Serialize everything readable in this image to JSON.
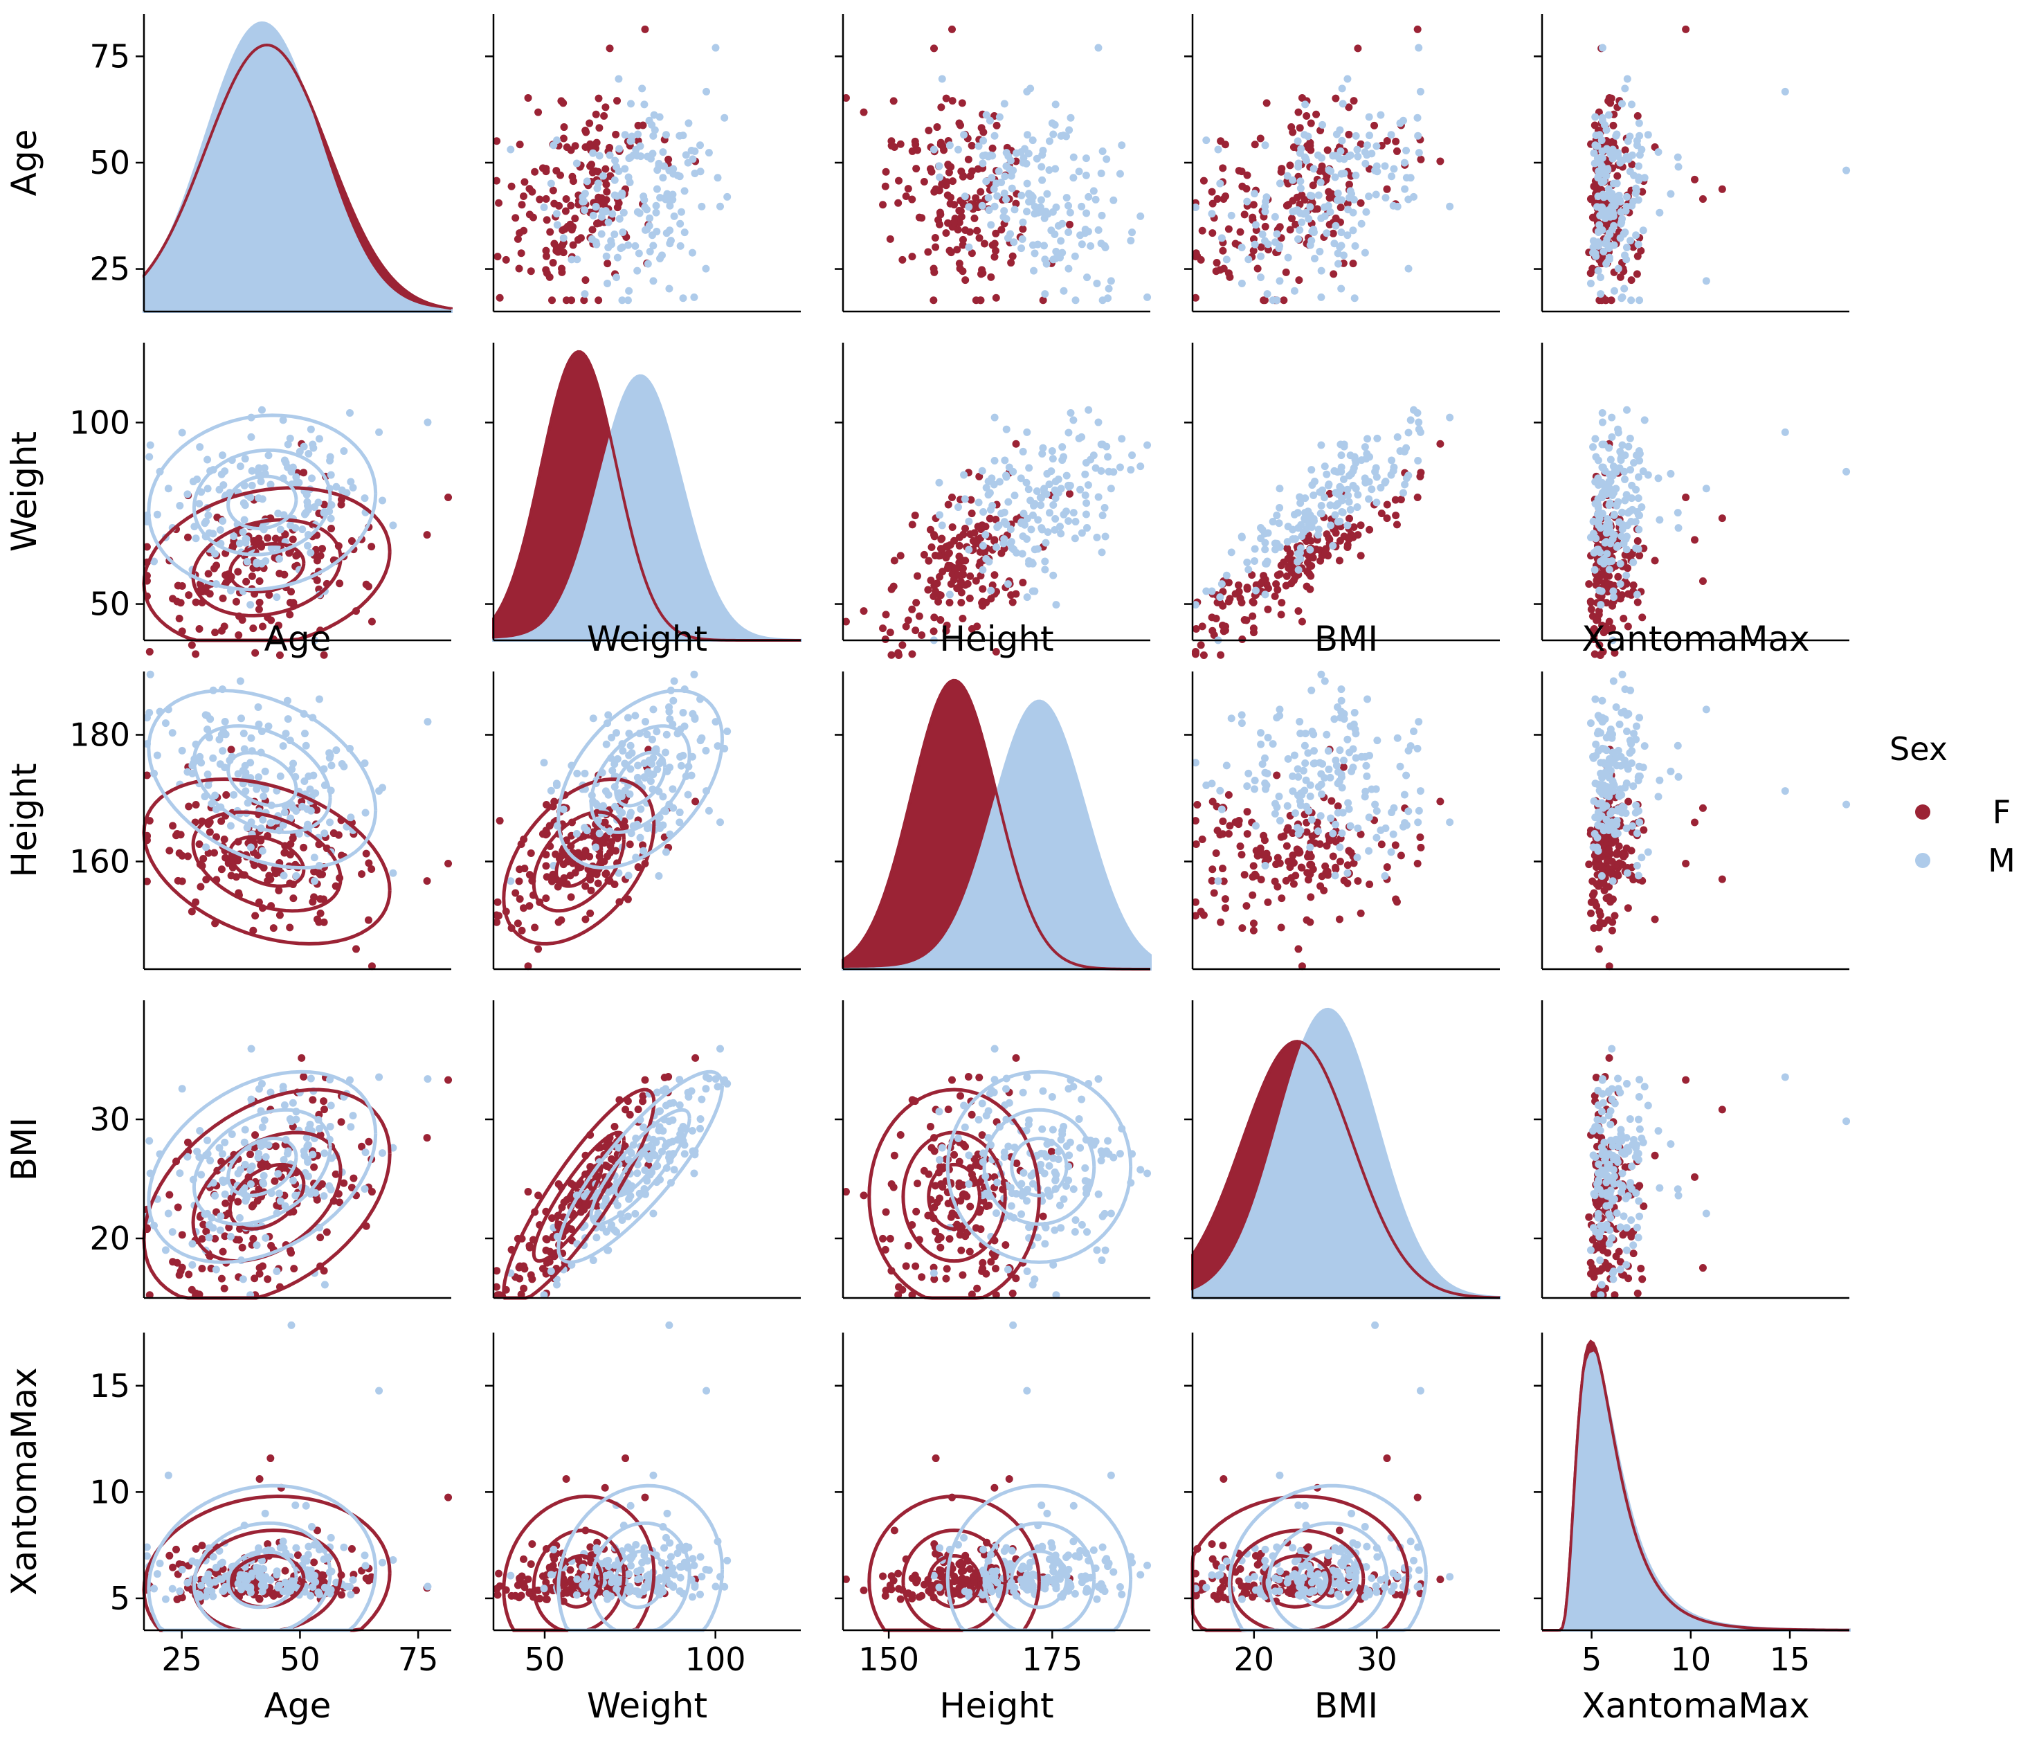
{
  "figure": {
    "variables": [
      "Age",
      "Weight",
      "Height",
      "BMI",
      "XantomaMax"
    ],
    "hue_variable": "Sex",
    "legend": {
      "title": "Sex",
      "placement": "right",
      "entries": [
        {
          "label": "F",
          "color": "#9b2335"
        },
        {
          "label": "M",
          "color": "#aecbea"
        }
      ]
    },
    "colors": {
      "F": "#9b2335",
      "M": "#aecbea"
    },
    "stray_labels": {
      "row": 1,
      "labels": [
        "Age",
        "Weight",
        "Height",
        "BMI",
        "XantomaMax"
      ]
    }
  },
  "chart_data": {
    "type": "scatter",
    "layout": "pairplot",
    "upper_triangle": "scatter",
    "diagonal": "kde",
    "lower_triangle": "scatter+kde-contours",
    "grid": false,
    "axes": [
      {
        "name": "Age",
        "xlim": [
          17,
          82
        ],
        "ylim": [
          15,
          85
        ],
        "ticks": [
          25,
          50,
          75
        ]
      },
      {
        "name": "Weight",
        "xlim": [
          35,
          125
        ],
        "ylim": [
          40,
          122
        ],
        "ticks": [
          50,
          100
        ]
      },
      {
        "name": "Height",
        "xlim": [
          143,
          190
        ],
        "ylim": [
          143,
          190
        ],
        "ticks": [
          150,
          175
        ],
        "y_ticks": [
          160,
          180
        ]
      },
      {
        "name": "BMI",
        "xlim": [
          15,
          40
        ],
        "ylim": [
          15,
          40
        ],
        "ticks": [
          20,
          30
        ]
      },
      {
        "name": "XantomaMax",
        "xlim": [
          2.5,
          18
        ],
        "ylim": [
          3.5,
          17.5
        ],
        "ticks": [
          5,
          10,
          15
        ]
      }
    ],
    "series": [
      {
        "name": "F",
        "color": "#9b2335",
        "mean": [
          43,
          60,
          160,
          23.5,
          5.8
        ],
        "sd": [
          13,
          11,
          6.5,
          4.5,
          2.0
        ],
        "correlations": {
          "Age-Weight": 0.2,
          "Age-Height": -0.35,
          "Age-BMI": 0.4,
          "Age-XantomaMax": 0.1,
          "Weight-Height": 0.45,
          "Weight-BMI": 0.88,
          "Weight-XantomaMax": 0.1,
          "Height-BMI": 0.0,
          "Height-XantomaMax": 0.0,
          "BMI-XantomaMax": 0.05
        }
      },
      {
        "name": "M",
        "color": "#aecbea",
        "mean": [
          42,
          78,
          173,
          26.0,
          5.9
        ],
        "sd": [
          12,
          12,
          7.0,
          4.0,
          2.2
        ],
        "correlations": {
          "Age-Weight": 0.1,
          "Age-Height": -0.35,
          "Age-BMI": 0.35,
          "Age-XantomaMax": 0.1,
          "Weight-Height": 0.45,
          "Weight-BMI": 0.85,
          "Weight-XantomaMax": 0.1,
          "Height-BMI": 0.0,
          "Height-XantomaMax": 0.0,
          "BMI-XantomaMax": 0.05
        }
      }
    ]
  }
}
